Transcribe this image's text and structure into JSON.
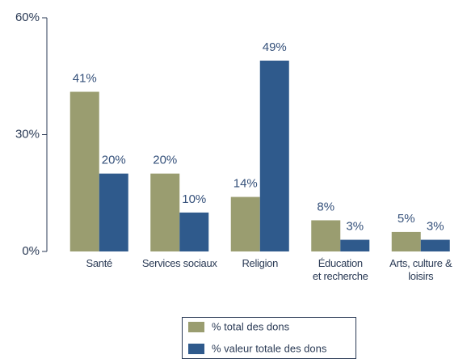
{
  "chart_data": {
    "type": "bar",
    "categories": [
      "Santé",
      "Services sociaux",
      "Religion",
      "Éducation\net recherche",
      "Arts, culture & loisirs"
    ],
    "series": [
      {
        "name": "% total des dons",
        "color": "#9a9d70",
        "values": [
          41,
          20,
          14,
          8,
          5
        ],
        "value_labels": [
          "41%",
          "20%",
          "14%",
          "8%",
          "5%"
        ]
      },
      {
        "name": "% valeur totale des dons",
        "color": "#2f5a8c",
        "values": [
          20,
          10,
          49,
          3,
          3
        ],
        "value_labels": [
          "20%",
          "10%",
          "49%",
          "3%",
          "3%"
        ]
      }
    ],
    "ylim": [
      0,
      60
    ],
    "yticks": [
      {
        "value": 0,
        "label": "0%"
      },
      {
        "value": 30,
        "label": "30%"
      },
      {
        "value": 60,
        "label": "60%"
      }
    ]
  }
}
